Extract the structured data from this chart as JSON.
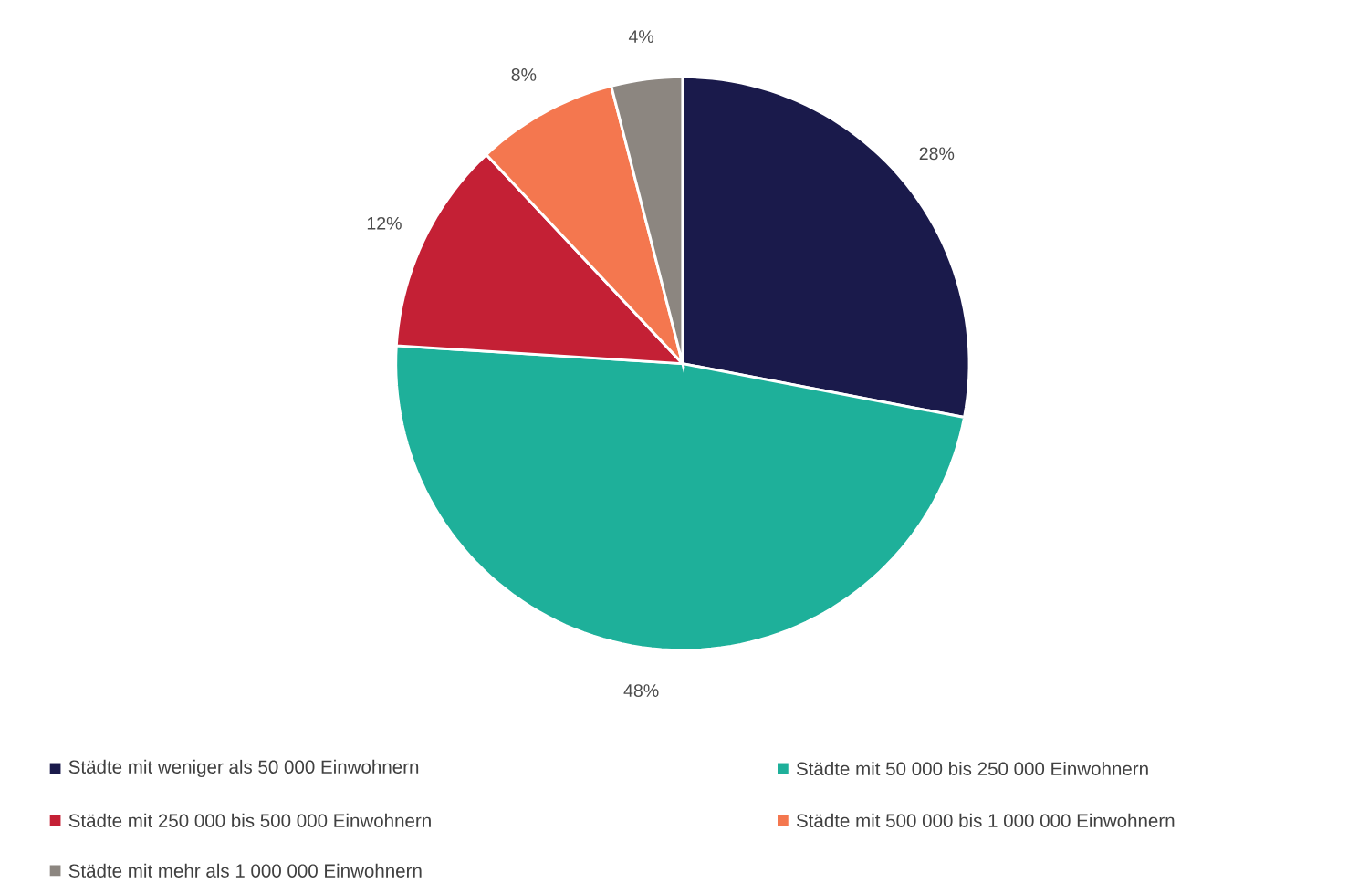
{
  "chart_data": {
    "type": "pie",
    "categories": [
      "Städte mit weniger als 50 000 Einwohnern",
      "Städte mit 50 000 bis 250 000 Einwohnern",
      "Städte mit 250 000 bis 500 000 Einwohnern",
      "Städte mit 500 000 bis 1 000 000 Einwohnern",
      "Städte mit mehr als 1 000 000 Einwohnern"
    ],
    "values": [
      28,
      48,
      12,
      8,
      4
    ],
    "value_labels": [
      "28%",
      "48%",
      "12%",
      "8%",
      "4%"
    ],
    "colors": [
      "#1a1a4b",
      "#1eb09a",
      "#c42035",
      "#f4774f",
      "#8c8680"
    ],
    "legend": "bottom"
  }
}
